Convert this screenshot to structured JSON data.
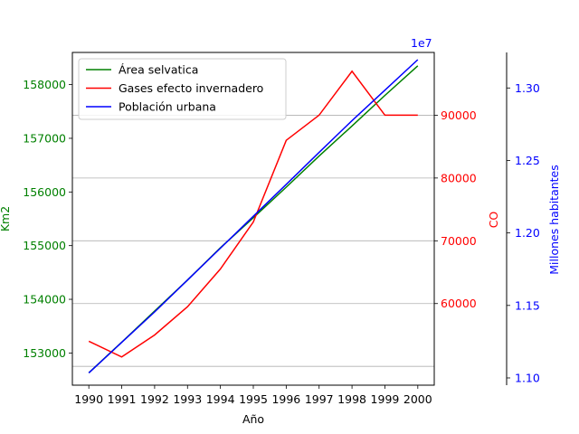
{
  "chart_data": {
    "type": "line",
    "xlabel": "Año",
    "x": [
      1990,
      1991,
      1992,
      1993,
      1994,
      1995,
      1996,
      1997,
      1998,
      1999,
      2000
    ],
    "axes": {
      "left": {
        "label": "Km2",
        "color": "#008000",
        "lim": [
          152400,
          158600
        ],
        "ticks": [
          153000,
          154000,
          155000,
          156000,
          157000,
          158000
        ],
        "tick_labels": [
          "153000",
          "154000",
          "155000",
          "156000",
          "157000",
          "158000"
        ]
      },
      "right": {
        "label": "CO",
        "color": "#ff0000",
        "lim": [
          47000,
          100000
        ],
        "ticks": [
          60000,
          70000,
          80000,
          90000
        ],
        "tick_labels": [
          "60000",
          "70000",
          "80000",
          "90000"
        ]
      },
      "right_outer": {
        "label": "Millones habitantes",
        "color": "#0000ff",
        "lim": [
          1.095,
          1.3245
        ],
        "ticks": [
          1.1,
          1.15,
          1.2,
          1.25,
          1.3
        ],
        "tick_labels": [
          "1.10",
          "1.15",
          "1.20",
          "1.25",
          "1.30"
        ],
        "offset_label": "1e7"
      }
    },
    "series": [
      {
        "name": "Área selvatica",
        "axis": "left",
        "color": "#008000",
        "values": [
          152630,
          153200,
          153780,
          154360,
          154960,
          155520,
          156090,
          156670,
          157230,
          157800,
          158350
        ]
      },
      {
        "name": "Gases efecto invernadero",
        "axis": "right",
        "color": "#ff0000",
        "values": [
          54000,
          51500,
          55000,
          59500,
          65500,
          73000,
          86000,
          90000,
          97000,
          90000,
          90000
        ]
      },
      {
        "name": "Población urbana",
        "axis": "right_outer",
        "color": "#0000ff",
        "values": [
          1.1035,
          1.1245,
          1.1455,
          1.1675,
          1.1895,
          1.2115,
          1.2335,
          1.2555,
          1.2775,
          1.2985,
          1.3195
        ]
      }
    ],
    "grid": {
      "horizontal": true,
      "vertical": false
    },
    "legend": {
      "placement": "top-left",
      "entries": [
        "Área selvatica",
        "Gases efecto invernadero",
        "Población urbana"
      ]
    }
  }
}
